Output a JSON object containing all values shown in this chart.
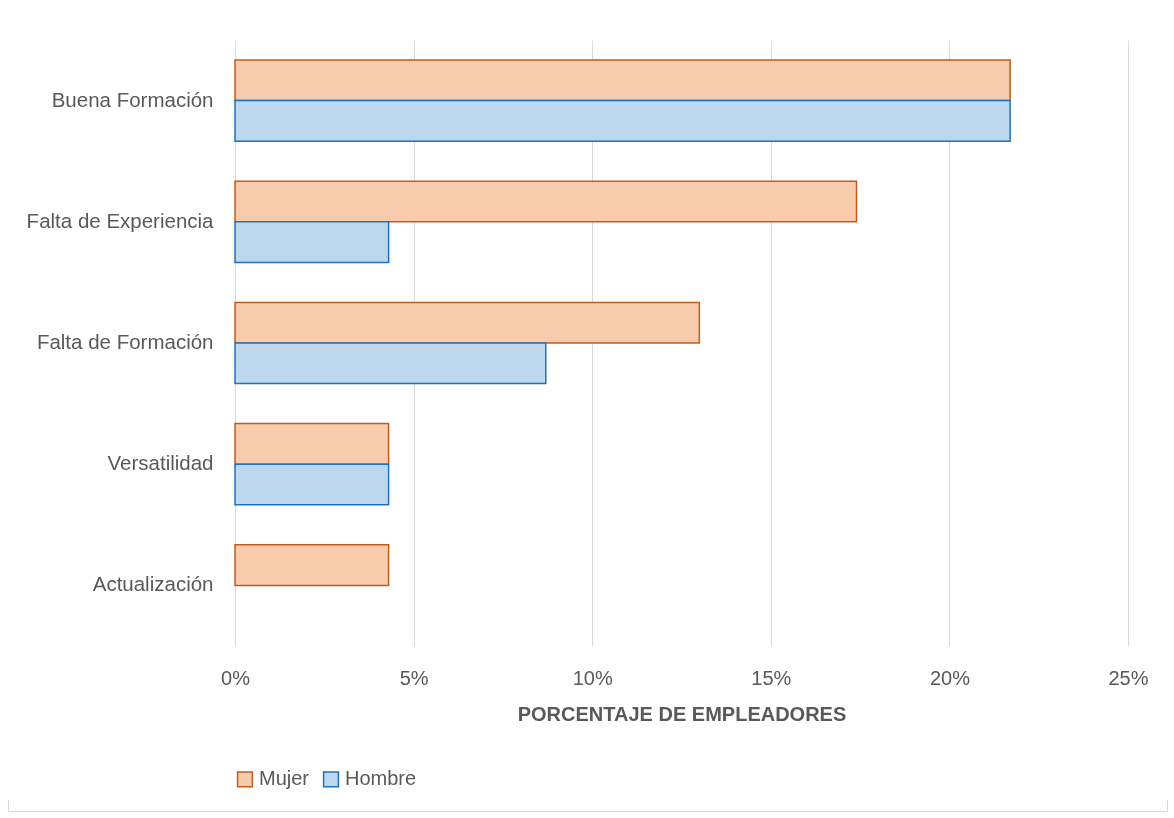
{
  "chart_data": {
    "type": "bar",
    "orientation": "horizontal",
    "xlabel": "PORCENTAJE DE EMPLEADORES",
    "categories": [
      "Buena Formación",
      "Falta de Experiencia",
      "Falta de Formación",
      "Versatilidad",
      "Actualización"
    ],
    "series": [
      {
        "name": "Mujer",
        "color": "#f8cbad",
        "values": [
          21.7,
          17.4,
          13.0,
          4.3,
          4.3
        ]
      },
      {
        "name": "Hombre",
        "color": "#bdd7ee",
        "values": [
          21.7,
          4.3,
          8.7,
          4.3,
          null
        ]
      }
    ],
    "xlim": [
      0,
      25
    ],
    "xticks": [
      {
        "value": 0,
        "label": "0%"
      },
      {
        "value": 5,
        "label": "5%"
      },
      {
        "value": 10,
        "label": "10%"
      },
      {
        "value": 15,
        "label": "15%"
      },
      {
        "value": 20,
        "label": "20%"
      },
      {
        "value": 25,
        "label": "25%"
      }
    ],
    "grid": "x",
    "legend": "bottom"
  }
}
